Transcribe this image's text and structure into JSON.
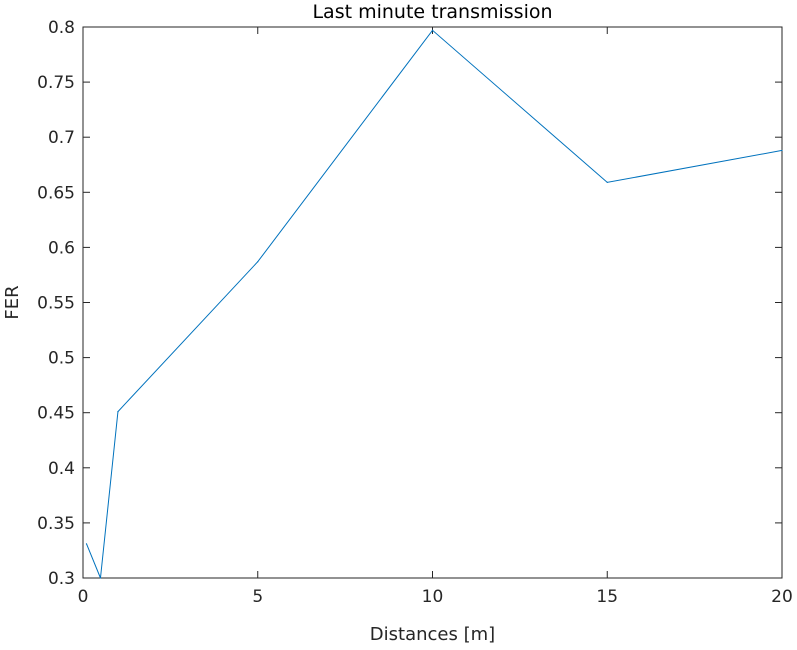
{
  "chart_data": {
    "type": "line",
    "title": "Last minute transmission",
    "xlabel": "Distances [m]",
    "ylabel": "FER",
    "xlim": [
      0,
      20
    ],
    "ylim": [
      0.3,
      0.8
    ],
    "xticks": [
      0,
      5,
      10,
      15,
      20
    ],
    "xtick_labels": [
      "0",
      "5",
      "10",
      "15",
      "20"
    ],
    "yticks": [
      0.3,
      0.35,
      0.4,
      0.45,
      0.5,
      0.55,
      0.6,
      0.65,
      0.7,
      0.75,
      0.8
    ],
    "ytick_labels": [
      "0.3",
      "0.35",
      "0.4",
      "0.45",
      "0.5",
      "0.55",
      "0.6",
      "0.65",
      "0.7",
      "0.75",
      "0.8"
    ],
    "grid": false,
    "series": [
      {
        "x": [
          0.1,
          0.5,
          1,
          5,
          10,
          15,
          20
        ],
        "y": [
          0.331,
          0.3,
          0.451,
          0.587,
          0.797,
          0.659,
          0.688
        ],
        "color": "#0072BD"
      }
    ]
  }
}
